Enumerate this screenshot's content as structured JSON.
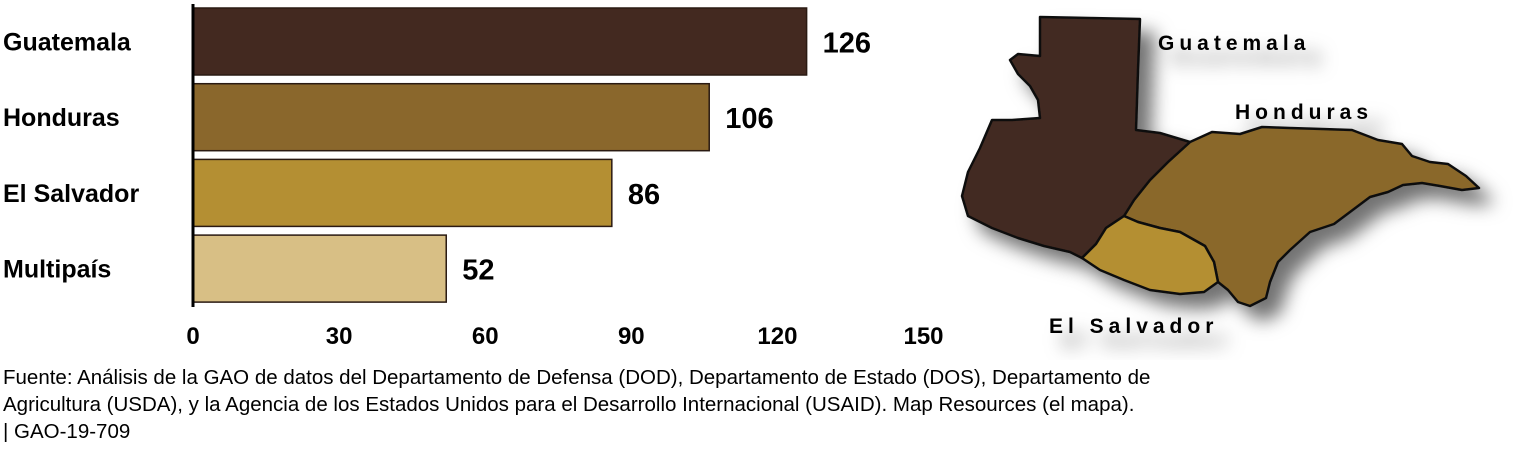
{
  "chart_data": {
    "type": "bar",
    "orientation": "horizontal",
    "categories": [
      "Guatemala",
      "Honduras",
      "El Salvador",
      "Multipaís"
    ],
    "values": [
      126,
      106,
      86,
      52
    ],
    "xlim": [
      0,
      150
    ],
    "xticks": [
      0,
      30,
      60,
      90,
      120,
      150
    ],
    "grid": false,
    "title": "",
    "xlabel": "",
    "ylabel": ""
  },
  "colors": {
    "Guatemala": "#432920",
    "Honduras": "#8a672c",
    "El Salvador": "#b48f33",
    "Multipaís": "#d8bf85"
  },
  "map": {
    "labels": {
      "guatemala": "Guatemala",
      "honduras": "Honduras",
      "el_salvador": "El Salvador"
    }
  },
  "footer": {
    "source_line1": "Fuente: Análisis de la GAO de datos del Departamento de Defensa (DOD), Departamento de Estado (DOS), Departamento de",
    "source_line2": "Agricultura (USDA), y la Agencia de los Estados Unidos para el Desarrollo Internacional (USAID). Map Resources (el mapa).",
    "report_id": "|  GAO-19-709"
  }
}
